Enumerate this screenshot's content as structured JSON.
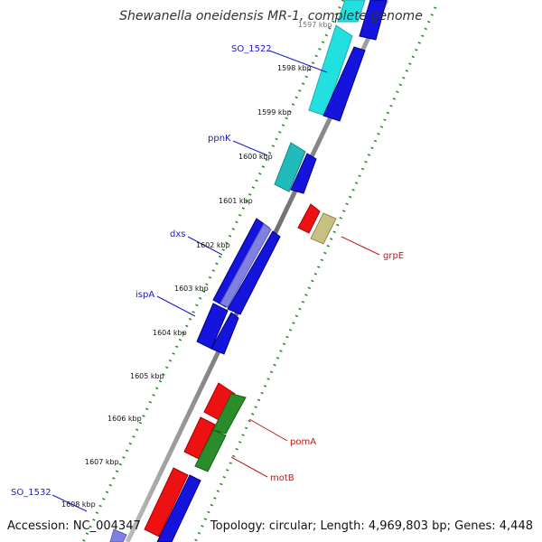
{
  "title": "Shewanella oneidensis MR-1, complete genome",
  "footer": {
    "accession": "Accession: NC_004347",
    "topology": "Topology: circular; Length: 4,969,803 bp; Genes: 4,448"
  },
  "scale": {
    "partial_top_label": "1597 kbp",
    "labels": [
      "1598 kbp",
      "1599 kbp",
      "1600 kbp",
      "1601 kbp",
      "1602 kbp",
      "1603 kbp",
      "1604 kbp",
      "1605 kbp",
      "1606 kbp",
      "1607 kbp",
      "1608 kbp"
    ]
  },
  "gene_labels": {
    "so1522": "SO_1522",
    "ppnk": "ppnK",
    "dxs": "dxs",
    "ispa": "ispA",
    "so1532": "SO_1532",
    "grpe": "grpE",
    "poma": "pomA",
    "motb": "motB"
  },
  "colors": {
    "blue_gene": "#1414dc",
    "cyan_gene": "#22e0e0",
    "teal_gene": "#22bbbb",
    "lavender_gene": "#8080e0",
    "red_gene": "#ee1111",
    "green_gene": "#2a8c2a",
    "khaki_gene": "#c8c080",
    "backbone": "#888888",
    "dotted_ring": "#1a8a1a"
  }
}
